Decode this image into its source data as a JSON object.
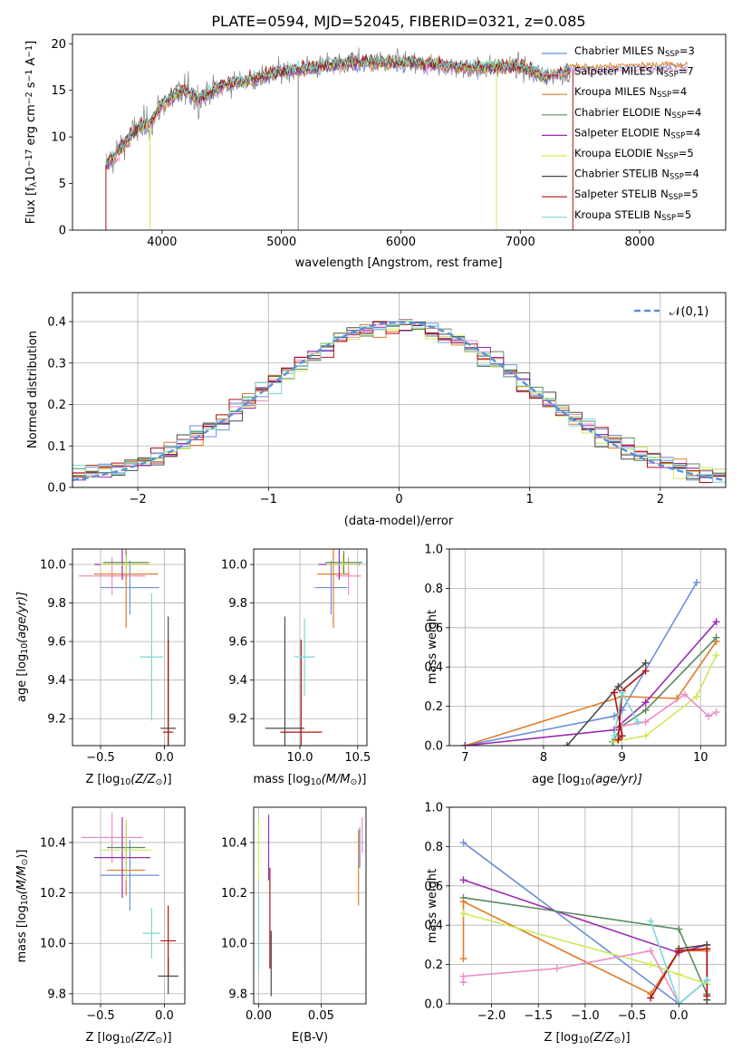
{
  "colors": {
    "chabrier_miles": "#6b8fd8",
    "salpeter_miles": "#ea8fc8",
    "kroupa_miles": "#e07c28",
    "chabrier_elodie": "#5a8a5e",
    "salpeter_elodie": "#9a2ab0",
    "kroupa_elodie": "#cdea5c",
    "chabrier_stelib": "#4a4a4a",
    "salpeter_stelib": "#b01010",
    "kroupa_stelib": "#7ad8d8",
    "data": "#808080",
    "normal": "#5b8fd8",
    "grid": "#b0b0b0"
  },
  "chart_data": [
    {
      "id": "spectrum",
      "type": "line",
      "title": "PLATE=0594, MJD=52045, FIBERID=0321, z=0.085",
      "xlabel": "wavelength [Angstrom, rest frame]",
      "ylabel": "Flux [f",
      "ylabel_parts": [
        "Flux [f",
        "λ",
        "10",
        "−17",
        " erg cm",
        "−2",
        " s",
        "−1",
        " A",
        "−1",
        "]"
      ],
      "xlim": [
        3250,
        8720
      ],
      "ylim": [
        0,
        21
      ],
      "xticks": [
        4000,
        5000,
        6000,
        7000,
        8000
      ],
      "yticks": [
        0,
        5,
        10,
        15,
        20
      ],
      "grid": false,
      "legend_position": "right",
      "series": [
        {
          "name": "Chabrier MILES",
          "nssp": "3",
          "color_key": "chabrier_miles"
        },
        {
          "name": "Salpeter MILES",
          "nssp": "7",
          "color_key": "salpeter_miles"
        },
        {
          "name": "Kroupa MILES",
          "nssp": "4",
          "color_key": "kroupa_miles"
        },
        {
          "name": "Chabrier ELODIE",
          "nssp": "4",
          "color_key": "chabrier_elodie"
        },
        {
          "name": "Salpeter ELODIE",
          "nssp": "4",
          "color_key": "salpeter_elodie"
        },
        {
          "name": "Kroupa ELODIE",
          "nssp": "5",
          "color_key": "kroupa_elodie"
        },
        {
          "name": "Chabrier STELIB",
          "nssp": "4",
          "color_key": "chabrier_stelib"
        },
        {
          "name": "Salpeter STELIB",
          "nssp": "5",
          "color_key": "salpeter_stelib"
        },
        {
          "name": "Kroupa STELIB",
          "nssp": "5",
          "color_key": "kroupa_stelib"
        }
      ],
      "nssp_prefix": "N",
      "nssp_sub": "SSP",
      "spectrum_shape": {
        "x": [
          3530,
          3600,
          3700,
          3800,
          3900,
          4000,
          4100,
          4200,
          4300,
          4500,
          4700,
          5000,
          5300,
          5600,
          6000,
          6500,
          7000,
          7200,
          7400
        ],
        "y": [
          7.0,
          8.0,
          9.5,
          11.0,
          11.5,
          13.5,
          14.5,
          15.0,
          14.0,
          15.5,
          16.0,
          17.0,
          17.5,
          18.0,
          18.0,
          17.5,
          17.5,
          16.5,
          17.0
        ]
      },
      "extra_segments": [
        {
          "color_key": "chabrier_miles",
          "x": [
            7400,
            8400
          ],
          "y": [
            17.3,
            17.6
          ]
        },
        {
          "color_key": "salpeter_miles",
          "x": [
            7400,
            8400
          ],
          "y": [
            17.0,
            17.2
          ]
        },
        {
          "color_key": "kroupa_miles",
          "x": [
            7400,
            8400
          ],
          "y": [
            17.5,
            17.8
          ]
        }
      ],
      "dropouts": [
        {
          "x": 3530,
          "color_key": "salpeter_stelib"
        },
        {
          "x": 3900,
          "color_key": "kroupa_elodie"
        },
        {
          "x": 5140,
          "color_key": "data"
        },
        {
          "x": 6800,
          "color_key": "kroupa_elodie"
        },
        {
          "x": 7440,
          "color_key": "salpeter_stelib"
        }
      ]
    },
    {
      "id": "residuals",
      "type": "histogram",
      "xlabel": "(data-model)/error",
      "ylabel": "Normed distribution",
      "xlim": [
        -2.5,
        2.5
      ],
      "ylim": [
        0,
        0.47
      ],
      "xticks": [
        -2,
        -1,
        0,
        1,
        2
      ],
      "yticks": [
        0.0,
        0.1,
        0.2,
        0.3,
        0.4
      ],
      "grid": true,
      "legend": {
        "label": "𝒩(0,1)",
        "position": "top-right"
      },
      "bins": {
        "start": -2.5,
        "width": 0.1,
        "count": 50
      }
    },
    {
      "id": "age_vs_z",
      "type": "scatter",
      "xlabel": "Z [log",
      "xlabel_parts": [
        "Z [log",
        "10",
        "(Z/Z",
        "⊙",
        ")]"
      ],
      "ylabel_parts": [
        "age  [log",
        "10",
        "(age/yr)]"
      ],
      "xlim": [
        -0.72,
        0.16
      ],
      "ylim": [
        9.06,
        10.08
      ],
      "xticks": [
        -0.5,
        0.0
      ],
      "yticks": [
        9.2,
        9.4,
        9.6,
        9.8,
        10.0
      ],
      "grid": true,
      "points": [
        {
          "color_key": "chabrier_miles",
          "x": -0.27,
          "y": 9.88,
          "xerr": 0.23,
          "yerr": 0.14
        },
        {
          "color_key": "salpeter_miles",
          "x": -0.41,
          "y": 9.94,
          "xerr": 0.26,
          "yerr": 0.1
        },
        {
          "color_key": "kroupa_miles",
          "x": -0.3,
          "y": 9.95,
          "xerr": 0.25,
          "yerr": 0.28
        },
        {
          "color_key": "chabrier_elodie",
          "x": -0.3,
          "y": 10.01,
          "xerr": 0.18,
          "yerr": 0.06
        },
        {
          "color_key": "salpeter_elodie",
          "x": -0.33,
          "y": 10.0,
          "xerr": 0.22,
          "yerr": 0.08
        },
        {
          "color_key": "kroupa_elodie",
          "x": -0.3,
          "y": 10.0,
          "xerr": 0.2,
          "yerr": 0.05
        },
        {
          "color_key": "chabrier_stelib",
          "x": 0.03,
          "y": 9.15,
          "xerr": 0.06,
          "yerr": 0.58
        },
        {
          "color_key": "salpeter_stelib",
          "x": 0.03,
          "y": 9.13,
          "xerr": 0.04,
          "yerr": 0.48
        },
        {
          "color_key": "kroupa_stelib",
          "x": -0.1,
          "y": 9.52,
          "xerr": 0.09,
          "yerr": 0.33
        }
      ]
    },
    {
      "id": "age_vs_mass",
      "type": "scatter",
      "xlabel_parts": [
        "mass [log",
        "10",
        "(M/M",
        "⊙",
        ")]"
      ],
      "xlim": [
        9.6,
        10.58
      ],
      "ylim": [
        9.06,
        10.08
      ],
      "xticks": [
        10.0,
        10.5
      ],
      "yticks": [
        9.2,
        9.4,
        9.6,
        9.8,
        10.0
      ],
      "grid": true,
      "points": [
        {
          "color_key": "chabrier_miles",
          "x": 10.27,
          "y": 9.88,
          "xerr": 0.14,
          "yerr": 0.14
        },
        {
          "color_key": "salpeter_miles",
          "x": 10.42,
          "y": 9.94,
          "xerr": 0.11,
          "yerr": 0.1
        },
        {
          "color_key": "kroupa_miles",
          "x": 10.29,
          "y": 9.95,
          "xerr": 0.14,
          "yerr": 0.28
        },
        {
          "color_key": "chabrier_elodie",
          "x": 10.38,
          "y": 10.01,
          "xerr": 0.16,
          "yerr": 0.06
        },
        {
          "color_key": "salpeter_elodie",
          "x": 10.34,
          "y": 10.0,
          "xerr": 0.18,
          "yerr": 0.08
        },
        {
          "color_key": "kroupa_elodie",
          "x": 10.37,
          "y": 10.0,
          "xerr": 0.14,
          "yerr": 0.05
        },
        {
          "color_key": "chabrier_stelib",
          "x": 9.87,
          "y": 9.15,
          "xerr": 0.17,
          "yerr": 0.58
        },
        {
          "color_key": "salpeter_stelib",
          "x": 10.01,
          "y": 9.13,
          "xerr": 0.18,
          "yerr": 0.48
        },
        {
          "color_key": "kroupa_stelib",
          "x": 10.04,
          "y": 9.52,
          "xerr": 0.09,
          "yerr": 0.2
        }
      ]
    },
    {
      "id": "weight_vs_age",
      "type": "line",
      "xlabel_parts": [
        "age  [log",
        "10",
        "(age/yr)]"
      ],
      "ylabel": "mass weight",
      "xlim": [
        6.8,
        10.32
      ],
      "ylim": [
        0,
        1.0
      ],
      "xticks": [
        7,
        8,
        9,
        10
      ],
      "yticks": [
        0.0,
        0.2,
        0.4,
        0.6,
        0.8,
        1.0
      ],
      "grid": true,
      "series": [
        {
          "color_key": "chabrier_miles",
          "x": [
            7.0,
            8.9,
            9.0,
            9.95
          ],
          "y": [
            0.0,
            0.15,
            0.18,
            0.83
          ]
        },
        {
          "color_key": "kroupa_miles",
          "x": [
            7.0,
            9.0,
            9.7,
            10.2
          ],
          "y": [
            0.0,
            0.25,
            0.24,
            0.53
          ]
        },
        {
          "color_key": "chabrier_elodie",
          "x": [
            8.88,
            9.0,
            9.3,
            10.2
          ],
          "y": [
            0.02,
            0.1,
            0.18,
            0.55
          ]
        },
        {
          "color_key": "salpeter_elodie",
          "x": [
            7.0,
            8.9,
            9.3,
            10.2
          ],
          "y": [
            0.0,
            0.08,
            0.22,
            0.63
          ]
        },
        {
          "color_key": "kroupa_elodie",
          "x": [
            8.9,
            9.3,
            9.95,
            10.2
          ],
          "y": [
            0.02,
            0.05,
            0.25,
            0.46
          ]
        },
        {
          "color_key": "salpeter_miles",
          "x": [
            9.0,
            9.3,
            9.8,
            10.1,
            10.2
          ],
          "y": [
            0.1,
            0.12,
            0.26,
            0.15,
            0.17
          ]
        },
        {
          "color_key": "chabrier_stelib",
          "x": [
            8.3,
            8.95,
            9.3
          ],
          "y": [
            0.0,
            0.3,
            0.42
          ]
        },
        {
          "color_key": "salpeter_stelib",
          "x": [
            8.9,
            9.0,
            8.95,
            9.0,
            9.3
          ],
          "y": [
            0.27,
            0.05,
            0.03,
            0.28,
            0.38
          ]
        },
        {
          "color_key": "kroupa_stelib",
          "x": [
            8.9,
            9.0,
            9.2
          ],
          "y": [
            0.05,
            0.27,
            0.12
          ]
        }
      ]
    },
    {
      "id": "mass_vs_z",
      "type": "scatter",
      "xlabel_parts": [
        "Z [log",
        "10",
        "(Z/Z",
        "⊙",
        ")]"
      ],
      "ylabel_parts": [
        "mass [log",
        "10",
        "(M/M",
        "⊙",
        ")]"
      ],
      "xlim": [
        -0.72,
        0.16
      ],
      "ylim": [
        9.76,
        10.54
      ],
      "xticks": [
        -0.5,
        0.0
      ],
      "yticks": [
        9.8,
        10.0,
        10.2,
        10.4
      ],
      "grid": true,
      "points": [
        {
          "color_key": "chabrier_miles",
          "x": -0.27,
          "y": 10.27,
          "xerr": 0.23,
          "yerr": 0.14
        },
        {
          "color_key": "salpeter_miles",
          "x": -0.41,
          "y": 10.42,
          "xerr": 0.24,
          "yerr": 0.1
        },
        {
          "color_key": "kroupa_miles",
          "x": -0.3,
          "y": 10.29,
          "xerr": 0.15,
          "yerr": 0.1
        },
        {
          "color_key": "chabrier_elodie",
          "x": -0.3,
          "y": 10.38,
          "xerr": 0.15,
          "yerr": 0.1
        },
        {
          "color_key": "salpeter_elodie",
          "x": -0.33,
          "y": 10.34,
          "xerr": 0.22,
          "yerr": 0.16
        },
        {
          "color_key": "kroupa_elodie",
          "x": -0.3,
          "y": 10.37,
          "xerr": 0.2,
          "yerr": 0.12
        },
        {
          "color_key": "chabrier_stelib",
          "x": 0.03,
          "y": 9.87,
          "xerr": 0.08,
          "yerr": 0.07
        },
        {
          "color_key": "salpeter_stelib",
          "x": 0.03,
          "y": 10.01,
          "xerr": 0.06,
          "yerr": 0.14
        },
        {
          "color_key": "kroupa_stelib",
          "x": -0.1,
          "y": 10.04,
          "xerr": 0.07,
          "yerr": 0.1
        }
      ]
    },
    {
      "id": "mass_vs_ebv",
      "type": "scatter",
      "xlabel": "E(B-V)",
      "xlim": [
        -0.004,
        0.086
      ],
      "ylim": [
        9.76,
        10.54
      ],
      "xticks": [
        0.0,
        0.05
      ],
      "yticks": [
        9.8,
        10.0,
        10.2,
        10.4
      ],
      "grid": true,
      "points": [
        {
          "color_key": "kroupa_elodie",
          "x": 0.0,
          "y": 10.37,
          "yerr": 0.12
        },
        {
          "color_key": "kroupa_stelib",
          "x": 0.0,
          "y": 10.04,
          "yerr": 0.15
        },
        {
          "color_key": "salpeter_elodie",
          "x": 0.008,
          "y": 10.38,
          "yerr": 0.13
        },
        {
          "color_key": "salpeter_stelib",
          "x": 0.009,
          "y": 10.1,
          "yerr": 0.2
        },
        {
          "color_key": "chabrier_stelib",
          "x": 0.01,
          "y": 9.92,
          "yerr": 0.13
        },
        {
          "color_key": "kroupa_miles",
          "x": 0.08,
          "y": 10.3,
          "yerr": 0.15
        },
        {
          "color_key": "salpeter_miles",
          "x": 0.083,
          "y": 10.43,
          "yerr": 0.07
        },
        {
          "color_key": "chabrier_miles",
          "x": 0.081,
          "y": 10.38,
          "yerr": 0.08
        }
      ]
    },
    {
      "id": "weight_vs_z",
      "type": "line",
      "xlabel_parts": [
        "Z [log",
        "10",
        "(Z/Z",
        "⊙",
        ")]"
      ],
      "ylabel": "mass weight",
      "xlim": [
        -2.45,
        0.5
      ],
      "ylim": [
        0,
        1.0
      ],
      "xticks": [
        -2.0,
        -1.5,
        -1.0,
        -0.5,
        0.0
      ],
      "yticks": [
        0.0,
        0.2,
        0.4,
        0.6,
        0.8,
        1.0
      ],
      "grid": true,
      "series": [
        {
          "color_key": "chabrier_miles",
          "x": [
            -2.3,
            0.0,
            0.3
          ],
          "y": [
            0.82,
            0.0,
            0.12
          ]
        },
        {
          "color_key": "salpeter_elodie",
          "x": [
            -2.3,
            0.0,
            0.3
          ],
          "y": [
            0.63,
            0.26,
            0.3
          ]
        },
        {
          "color_key": "chabrier_elodie",
          "x": [
            -2.3,
            0.0,
            0.3
          ],
          "y": [
            0.54,
            0.38,
            0.05
          ]
        },
        {
          "color_key": "kroupa_miles",
          "x": [
            -2.3,
            -2.3,
            -0.3,
            0.0,
            0.3
          ],
          "y": [
            0.23,
            0.52,
            0.05,
            0.27,
            0.27
          ]
        },
        {
          "color_key": "kroupa_elodie",
          "x": [
            -2.3,
            -0.3,
            0.0,
            0.3
          ],
          "y": [
            0.46,
            0.2,
            0.15,
            0.1
          ]
        },
        {
          "color_key": "salpeter_miles",
          "x": [
            -2.3,
            -2.3,
            -1.3,
            -0.3,
            0.0
          ],
          "y": [
            0.11,
            0.14,
            0.18,
            0.27,
            0.0
          ]
        },
        {
          "color_key": "chabrier_stelib",
          "x": [
            0.0,
            0.3,
            0.3
          ],
          "y": [
            0.28,
            0.3,
            0.02
          ]
        },
        {
          "color_key": "salpeter_stelib",
          "x": [
            -0.3,
            0.0,
            0.3,
            0.3
          ],
          "y": [
            0.03,
            0.27,
            0.28,
            0.04
          ]
        },
        {
          "color_key": "kroupa_stelib",
          "x": [
            -0.3,
            0.0,
            0.3
          ],
          "y": [
            0.42,
            0.0,
            0.12
          ]
        }
      ]
    }
  ]
}
